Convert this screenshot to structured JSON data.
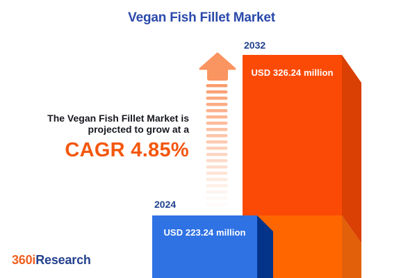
{
  "title": "Vegan Fish Fillet Market",
  "annotation": {
    "line1": "The Vegan Fish Fillet Market is",
    "line2": "projected to grow at a",
    "cagr_text": "CAGR 4.85%"
  },
  "bars": [
    {
      "year": "2024",
      "value_label": "USD 223.24 million",
      "value": 223.24
    },
    {
      "year": "2032",
      "value_label": "USD 326.24 million",
      "value": 326.24
    }
  ],
  "logo": {
    "prefix": "360i",
    "suffix": "Research"
  },
  "colors": {
    "title_blue": "#2A49AB",
    "year_label_blue": "#21418D",
    "body_text": "#17191F",
    "cagr_orange": "#F3570E",
    "arrow_orange": "#FA9460",
    "bar_2024_front": "#2E72E4",
    "bar_2024_side": "#043489",
    "bar_2032_front_growth": "#FB4A05",
    "bar_2032_front_base": "#FF6600",
    "bar_2032_side_growth": "#DA3F04",
    "bar_2032_side_base": "#E2600A",
    "logo_orange": "#F26021",
    "logo_blue": "#24418E"
  },
  "chart_data": {
    "type": "bar",
    "title": "Vegan Fish Fillet Market",
    "categories": [
      "2024",
      "2032"
    ],
    "values": [
      223.24,
      326.24
    ],
    "unit": "USD million",
    "value_labels": [
      "USD 223.24 million",
      "USD 326.24 million"
    ],
    "cagr_percent": 4.85,
    "annotation": "The Vegan Fish Fillet Market is projected to grow at a CAGR 4.85%",
    "series_colors": [
      "#2E72E4",
      "#FB4A05"
    ],
    "legend": "none",
    "axes": "none",
    "style": "pictorial 3D bars, category labels above bars, values printed inside bars"
  }
}
